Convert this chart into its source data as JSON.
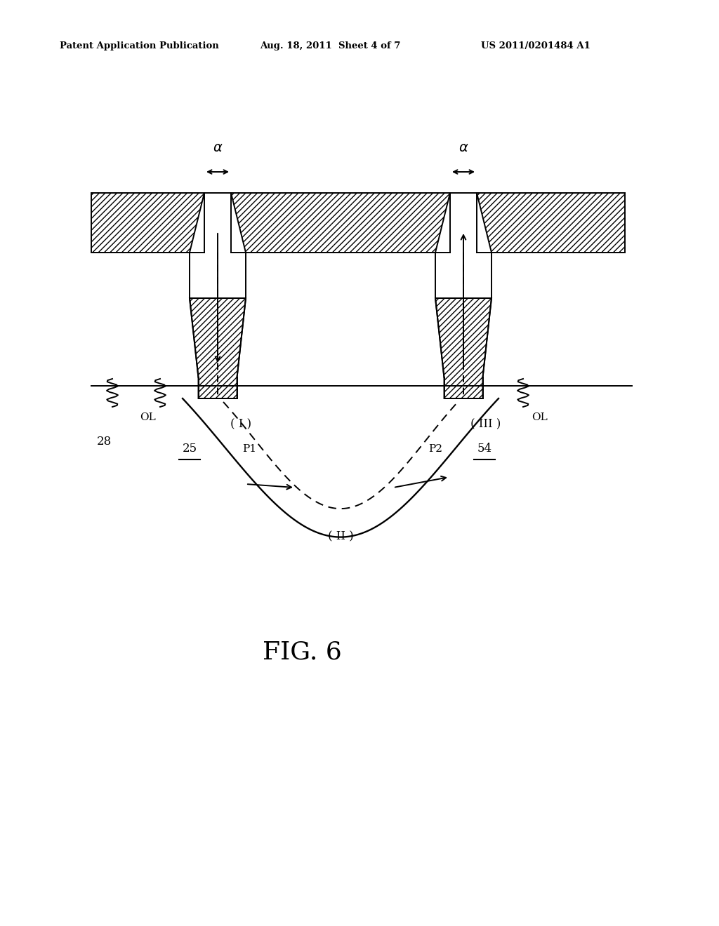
{
  "bg_color": "#ffffff",
  "lc": "#000000",
  "header_left": "Patent Application Publication",
  "header_mid": "Aug. 18, 2011  Sheet 4 of 7",
  "header_right": "US 2011/0201484 A1",
  "fig_label": "FIG. 6",
  "lw": 1.4
}
